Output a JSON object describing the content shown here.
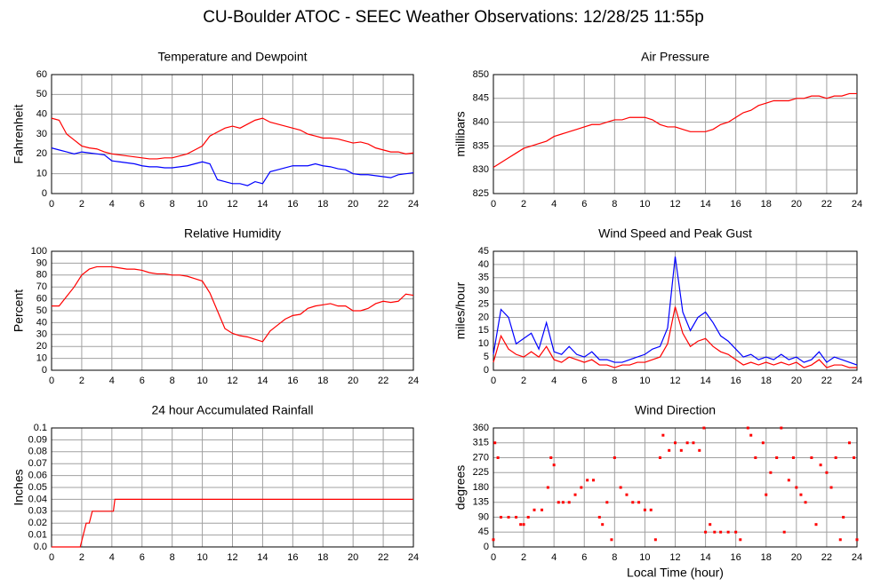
{
  "title": "CU-Boulder ATOC - SEEC Weather Observations: 12/28/25 11:55p",
  "chart_data": [
    {
      "type": "line",
      "title": "Temperature and Dewpoint",
      "ylabel": "Fahrenheit",
      "grid": true,
      "xlim": [
        0,
        24
      ],
      "xticks": [
        0,
        2,
        4,
        6,
        8,
        10,
        12,
        14,
        16,
        18,
        20,
        22,
        24
      ],
      "ylim": [
        0,
        60
      ],
      "yticks": [
        0,
        10,
        20,
        30,
        40,
        50,
        60
      ],
      "x": [
        0,
        0.5,
        1,
        1.5,
        2,
        2.5,
        3,
        3.5,
        4,
        4.5,
        5,
        5.5,
        6,
        6.5,
        7,
        7.5,
        8,
        8.5,
        9,
        9.5,
        10,
        10.5,
        11,
        11.5,
        12,
        12.5,
        13,
        13.5,
        14,
        14.5,
        15,
        15.5,
        16,
        16.5,
        17,
        17.5,
        18,
        18.5,
        19,
        19.5,
        20,
        20.5,
        21,
        21.5,
        22,
        22.5,
        23,
        23.5,
        24
      ],
      "series": [
        {
          "color": "#ff0000",
          "values": [
            38,
            37,
            30,
            27,
            24,
            23,
            22.5,
            21,
            20,
            19.5,
            19,
            18.5,
            18,
            17.5,
            17.5,
            18,
            18,
            19,
            20,
            22,
            24,
            29,
            31,
            33,
            34,
            33,
            35,
            37,
            38,
            36,
            35,
            34,
            33,
            32,
            30,
            29,
            28,
            28,
            27.5,
            26.5,
            25.5,
            26,
            25,
            23,
            22,
            21,
            21,
            20,
            20.5
          ]
        },
        {
          "color": "#0000ff",
          "values": [
            23,
            22,
            21,
            20,
            21,
            20.5,
            20,
            19.5,
            16.5,
            16,
            15.5,
            15,
            14,
            13.5,
            13.5,
            13,
            13,
            13.5,
            14,
            15,
            16,
            15,
            7,
            6,
            5,
            5,
            4,
            6,
            5,
            11,
            12,
            13,
            14,
            14,
            14,
            15,
            14,
            13.5,
            12.5,
            12,
            10,
            9.5,
            9.5,
            9,
            8.5,
            8,
            9.5,
            10,
            10.5
          ]
        }
      ]
    },
    {
      "type": "line",
      "title": "Air Pressure",
      "ylabel": "millibars",
      "grid": true,
      "xlim": [
        0,
        24
      ],
      "xticks": [
        0,
        2,
        4,
        6,
        8,
        10,
        12,
        14,
        16,
        18,
        20,
        22,
        24
      ],
      "ylim": [
        825,
        850
      ],
      "yticks": [
        825,
        830,
        835,
        840,
        845,
        850
      ],
      "x": [
        0,
        0.5,
        1,
        1.5,
        2,
        2.5,
        3,
        3.5,
        4,
        4.5,
        5,
        5.5,
        6,
        6.5,
        7,
        7.5,
        8,
        8.5,
        9,
        9.5,
        10,
        10.5,
        11,
        11.5,
        12,
        12.5,
        13,
        13.5,
        14,
        14.5,
        15,
        15.5,
        16,
        16.5,
        17,
        17.5,
        18,
        18.5,
        19,
        19.5,
        20,
        20.5,
        21,
        21.5,
        22,
        22.5,
        23,
        23.5,
        24
      ],
      "series": [
        {
          "color": "#ff0000",
          "values": [
            830.5,
            831.5,
            832.5,
            833.5,
            834.5,
            835,
            835.5,
            836,
            837,
            837.5,
            838,
            838.5,
            839,
            839.5,
            839.5,
            840,
            840.5,
            840.5,
            841,
            841,
            841,
            840.5,
            839.5,
            839,
            839,
            838.5,
            838,
            838,
            838,
            838.5,
            839.5,
            840,
            841,
            842,
            842.5,
            843.5,
            844,
            844.5,
            844.5,
            844.5,
            845,
            845,
            845.5,
            845.5,
            845,
            845.5,
            845.5,
            846,
            846
          ]
        }
      ]
    },
    {
      "type": "line",
      "title": "Relative Humidity",
      "ylabel": "Percent",
      "grid": true,
      "xlim": [
        0,
        24
      ],
      "xticks": [
        0,
        2,
        4,
        6,
        8,
        10,
        12,
        14,
        16,
        18,
        20,
        22,
        24
      ],
      "ylim": [
        0,
        100
      ],
      "yticks": [
        0,
        10,
        20,
        30,
        40,
        50,
        60,
        70,
        80,
        90,
        100
      ],
      "x": [
        0,
        0.5,
        1,
        1.5,
        2,
        2.5,
        3,
        3.5,
        4,
        4.5,
        5,
        5.5,
        6,
        6.5,
        7,
        7.5,
        8,
        8.5,
        9,
        9.5,
        10,
        10.5,
        11,
        11.5,
        12,
        12.5,
        13,
        13.5,
        14,
        14.5,
        15,
        15.5,
        16,
        16.5,
        17,
        17.5,
        18,
        18.5,
        19,
        19.5,
        20,
        20.5,
        21,
        21.5,
        22,
        22.5,
        23,
        23.5,
        24
      ],
      "series": [
        {
          "color": "#ff0000",
          "values": [
            54,
            54,
            62,
            70,
            80,
            85,
            87,
            87,
            87,
            86,
            85,
            85,
            84,
            82,
            81,
            81,
            80,
            80,
            79,
            77,
            75,
            65,
            50,
            35,
            31,
            29,
            28,
            26,
            24,
            33,
            38,
            43,
            46,
            47,
            52,
            54,
            55,
            56,
            54,
            54,
            50,
            50,
            52,
            56,
            58,
            57,
            58,
            64,
            63
          ]
        }
      ]
    },
    {
      "type": "line",
      "title": "Wind Speed and Peak Gust",
      "ylabel": "miles/hour",
      "grid": true,
      "xlim": [
        0,
        24
      ],
      "xticks": [
        0,
        2,
        4,
        6,
        8,
        10,
        12,
        14,
        16,
        18,
        20,
        22,
        24
      ],
      "ylim": [
        0,
        45
      ],
      "yticks": [
        0,
        5,
        10,
        15,
        20,
        25,
        30,
        35,
        40,
        45
      ],
      "x": [
        0,
        0.5,
        1,
        1.5,
        2,
        2.5,
        3,
        3.5,
        4,
        4.5,
        5,
        5.5,
        6,
        6.5,
        7,
        7.5,
        8,
        8.5,
        9,
        9.5,
        10,
        10.5,
        11,
        11.5,
        12,
        12.5,
        13,
        13.5,
        14,
        14.5,
        15,
        15.5,
        16,
        16.5,
        17,
        17.5,
        18,
        18.5,
        19,
        19.5,
        20,
        20.5,
        21,
        21.5,
        22,
        22.5,
        23,
        23.5,
        24
      ],
      "series": [
        {
          "color": "#0000ff",
          "values": [
            6,
            23,
            20,
            10,
            12,
            14,
            8,
            18,
            7,
            6,
            9,
            6,
            5,
            7,
            4,
            4,
            3,
            3,
            4,
            5,
            6,
            8,
            9,
            16,
            43,
            22,
            15,
            20,
            22,
            18,
            13,
            11,
            8,
            5,
            6,
            4,
            5,
            4,
            6,
            4,
            5,
            3,
            4,
            7,
            3,
            5,
            4,
            3,
            2
          ]
        },
        {
          "color": "#ff0000",
          "values": [
            3,
            13,
            8,
            6,
            5,
            7,
            5,
            9,
            4,
            3,
            5,
            4,
            3,
            4,
            2,
            2,
            1,
            2,
            2,
            3,
            3,
            4,
            5,
            10,
            24,
            14,
            9,
            11,
            12,
            9,
            7,
            6,
            4,
            2,
            3,
            2,
            3,
            2,
            3,
            2,
            3,
            1,
            2,
            4,
            1,
            2,
            2,
            1,
            1
          ]
        }
      ]
    },
    {
      "type": "line",
      "title": "24 hour Accumulated Rainfall",
      "ylabel": "Inches",
      "grid": true,
      "xlim": [
        0,
        24
      ],
      "xticks": [
        0,
        2,
        4,
        6,
        8,
        10,
        12,
        14,
        16,
        18,
        20,
        22,
        24
      ],
      "ylim": [
        0,
        0.1
      ],
      "yticks": [
        {
          "value": 0,
          "label": "0.0"
        },
        0.01,
        0.02,
        0.03,
        0.04,
        0.05,
        0.06,
        0.07,
        0.08,
        0.09,
        0.1
      ],
      "x": [
        0,
        1.9,
        2.1,
        2.3,
        2.5,
        2.7,
        4.1,
        4.2,
        24
      ],
      "series": [
        {
          "color": "#ff0000",
          "values": [
            0,
            0,
            0.01,
            0.02,
            0.02,
            0.03,
            0.03,
            0.04,
            0.04
          ]
        }
      ]
    },
    {
      "type": "scatter",
      "title": "Wind Direction",
      "ylabel": "degrees",
      "xlabel": "Local Time (hour)",
      "grid": true,
      "xlim": [
        0,
        24
      ],
      "xticks": [
        0,
        2,
        4,
        6,
        8,
        10,
        12,
        14,
        16,
        18,
        20,
        22,
        24
      ],
      "ylim": [
        0,
        360
      ],
      "yticks": [
        0,
        45,
        90,
        135,
        180,
        225,
        270,
        315,
        360
      ],
      "x": [
        0,
        0.1,
        0.3,
        0.5,
        1,
        1.5,
        1.8,
        2,
        2.3,
        2.7,
        3.2,
        3.6,
        3.8,
        4,
        4.3,
        4.6,
        5,
        5.4,
        5.8,
        6.2,
        6.6,
        7,
        7.2,
        7.5,
        7.8,
        8,
        8.4,
        8.8,
        9.2,
        9.6,
        10,
        10.4,
        10.7,
        11,
        11.2,
        11.6,
        12,
        12.4,
        12.8,
        13.2,
        13.6,
        13.9,
        14,
        14.3,
        14.6,
        15,
        15.5,
        16,
        16.3,
        16.8,
        17,
        17.3,
        17.8,
        18,
        18.3,
        18.7,
        19,
        19.2,
        19.5,
        19.8,
        20,
        20.3,
        20.6,
        21,
        21.3,
        21.6,
        22,
        22.3,
        22.6,
        22.9,
        23.1,
        23.5,
        23.8,
        24
      ],
      "series": [
        {
          "color": "#ff0000",
          "values": [
            22,
            315,
            270,
            90,
            90,
            90,
            68,
            68,
            90,
            112,
            112,
            180,
            270,
            248,
            135,
            135,
            135,
            158,
            180,
            202,
            202,
            90,
            68,
            135,
            22,
            270,
            180,
            158,
            135,
            135,
            112,
            112,
            22,
            270,
            338,
            292,
            315,
            292,
            315,
            315,
            292,
            360,
            45,
            68,
            45,
            45,
            45,
            45,
            22,
            360,
            338,
            270,
            315,
            158,
            225,
            270,
            360,
            45,
            202,
            270,
            180,
            158,
            135,
            270,
            68,
            248,
            225,
            180,
            270,
            22,
            90,
            315,
            270,
            22
          ]
        }
      ]
    }
  ]
}
